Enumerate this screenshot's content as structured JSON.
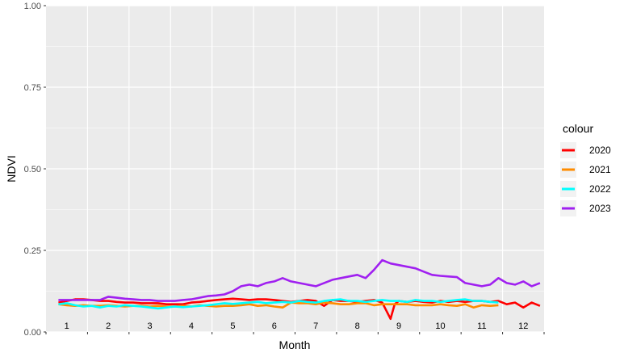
{
  "chart_data": {
    "type": "line",
    "title": "",
    "xlabel": "Month",
    "ylabel": "NDVI",
    "xlim": [
      0.5,
      12.5
    ],
    "ylim": [
      0,
      1
    ],
    "yticks": [
      0.0,
      0.25,
      0.5,
      0.75,
      1.0
    ],
    "ytick_labels": [
      "0.00",
      "0.25",
      "0.50",
      "0.75",
      "1.00"
    ],
    "month_labels": [
      "1",
      "2",
      "3",
      "4",
      "5",
      "6",
      "7",
      "8",
      "9",
      "10",
      "11",
      "12"
    ],
    "legend_title": "colour",
    "legend_position": "right",
    "grid": true,
    "series": [
      {
        "name": "2020",
        "color": "#ff0000",
        "x": [
          0.8,
          1.0,
          1.2,
          1.4,
          1.6,
          1.8,
          2.0,
          2.2,
          2.4,
          2.6,
          2.8,
          3.0,
          3.2,
          3.4,
          3.6,
          3.8,
          4.0,
          4.2,
          4.4,
          4.6,
          4.8,
          5.0,
          5.2,
          5.4,
          5.6,
          5.8,
          6.0,
          6.2,
          6.4,
          6.6,
          6.8,
          7.0,
          7.2,
          7.4,
          7.6,
          7.8,
          8.0,
          8.2,
          8.4,
          8.6,
          8.8,
          8.9,
          9.0,
          9.2,
          9.4,
          9.6,
          9.8,
          10.0,
          10.2,
          10.4,
          10.6,
          10.8,
          11.0,
          11.2,
          11.4,
          11.6,
          11.8,
          12.0,
          12.2,
          12.4
        ],
        "y": [
          0.09,
          0.095,
          0.1,
          0.1,
          0.098,
          0.095,
          0.095,
          0.092,
          0.09,
          0.09,
          0.088,
          0.088,
          0.088,
          0.085,
          0.085,
          0.085,
          0.09,
          0.092,
          0.095,
          0.098,
          0.1,
          0.102,
          0.1,
          0.098,
          0.1,
          0.1,
          0.098,
          0.095,
          0.092,
          0.095,
          0.098,
          0.095,
          0.08,
          0.098,
          0.095,
          0.095,
          0.092,
          0.095,
          0.098,
          0.09,
          0.04,
          0.085,
          0.095,
          0.092,
          0.095,
          0.092,
          0.09,
          0.095,
          0.092,
          0.095,
          0.092,
          0.095,
          0.095,
          0.092,
          0.095,
          0.085,
          0.09,
          0.075,
          0.09,
          0.08
        ]
      },
      {
        "name": "2021",
        "color": "#ff8c00",
        "x": [
          0.8,
          1.0,
          1.2,
          1.4,
          1.6,
          1.8,
          2.0,
          2.2,
          2.4,
          2.6,
          2.8,
          3.0,
          3.2,
          3.4,
          3.6,
          3.8,
          4.0,
          4.2,
          4.4,
          4.6,
          4.8,
          5.0,
          5.2,
          5.4,
          5.6,
          5.8,
          6.0,
          6.2,
          6.4,
          6.6,
          6.8,
          7.0,
          7.2,
          7.4,
          7.6,
          7.8,
          8.0,
          8.2,
          8.4,
          8.6,
          8.8,
          9.0,
          9.2,
          9.4,
          9.6,
          9.8,
          10.0,
          10.2,
          10.4,
          10.6,
          10.8,
          11.0,
          11.2,
          11.4
        ],
        "y": [
          0.085,
          0.082,
          0.08,
          0.082,
          0.08,
          0.08,
          0.082,
          0.08,
          0.078,
          0.08,
          0.08,
          0.078,
          0.08,
          0.078,
          0.078,
          0.08,
          0.078,
          0.082,
          0.08,
          0.078,
          0.08,
          0.08,
          0.082,
          0.085,
          0.08,
          0.082,
          0.078,
          0.075,
          0.09,
          0.088,
          0.088,
          0.085,
          0.09,
          0.088,
          0.085,
          0.085,
          0.088,
          0.088,
          0.082,
          0.085,
          0.085,
          0.085,
          0.085,
          0.082,
          0.082,
          0.082,
          0.085,
          0.082,
          0.08,
          0.085,
          0.075,
          0.082,
          0.08,
          0.082
        ]
      },
      {
        "name": "2022",
        "color": "#00ffff",
        "x": [
          0.8,
          1.0,
          1.2,
          1.4,
          1.6,
          1.8,
          2.0,
          2.2,
          2.4,
          2.6,
          2.8,
          3.0,
          3.2,
          3.4,
          3.6,
          3.8,
          4.0,
          4.2,
          4.4,
          4.6,
          4.8,
          5.0,
          5.2,
          5.4,
          5.6,
          5.8,
          6.0,
          6.2,
          6.4,
          6.6,
          6.8,
          7.0,
          7.2,
          7.4,
          7.6,
          7.8,
          8.0,
          8.2,
          8.4,
          8.6,
          8.8,
          9.0,
          9.2,
          9.4,
          9.6,
          9.8,
          10.0,
          10.2,
          10.4,
          10.6,
          10.8,
          11.0,
          11.2,
          11.4
        ],
        "y": [
          0.085,
          0.088,
          0.082,
          0.078,
          0.08,
          0.075,
          0.08,
          0.078,
          0.082,
          0.08,
          0.078,
          0.075,
          0.072,
          0.075,
          0.078,
          0.076,
          0.078,
          0.08,
          0.082,
          0.085,
          0.088,
          0.086,
          0.088,
          0.09,
          0.092,
          0.088,
          0.09,
          0.092,
          0.09,
          0.095,
          0.092,
          0.09,
          0.095,
          0.098,
          0.1,
          0.095,
          0.095,
          0.092,
          0.095,
          0.098,
          0.095,
          0.095,
          0.092,
          0.098,
          0.095,
          0.095,
          0.092,
          0.095,
          0.098,
          0.1,
          0.095,
          0.095,
          0.092,
          0.09
        ]
      },
      {
        "name": "2023",
        "color": "#a020f0",
        "x": [
          0.8,
          1.0,
          1.2,
          1.4,
          1.6,
          1.8,
          2.0,
          2.2,
          2.4,
          2.6,
          2.8,
          3.0,
          3.2,
          3.4,
          3.6,
          3.8,
          4.0,
          4.2,
          4.4,
          4.6,
          4.8,
          5.0,
          5.2,
          5.4,
          5.6,
          5.8,
          6.0,
          6.2,
          6.4,
          6.6,
          6.8,
          7.0,
          7.2,
          7.4,
          7.6,
          7.8,
          8.0,
          8.2,
          8.4,
          8.6,
          8.8,
          9.0,
          9.2,
          9.4,
          9.6,
          9.8,
          10.0,
          10.2,
          10.4,
          10.6,
          10.8,
          11.0,
          11.2,
          11.4,
          11.6,
          11.8,
          12.0,
          12.2,
          12.4
        ],
        "y": [
          0.098,
          0.098,
          0.098,
          0.098,
          0.098,
          0.098,
          0.108,
          0.105,
          0.102,
          0.1,
          0.098,
          0.098,
          0.095,
          0.095,
          0.095,
          0.098,
          0.1,
          0.105,
          0.11,
          0.112,
          0.115,
          0.125,
          0.14,
          0.145,
          0.14,
          0.15,
          0.155,
          0.165,
          0.155,
          0.15,
          0.145,
          0.14,
          0.15,
          0.16,
          0.165,
          0.17,
          0.175,
          0.165,
          0.19,
          0.22,
          0.21,
          0.205,
          0.2,
          0.195,
          0.185,
          0.175,
          0.172,
          0.17,
          0.168,
          0.15,
          0.145,
          0.14,
          0.145,
          0.165,
          0.15,
          0.145,
          0.155,
          0.14,
          0.15
        ]
      }
    ]
  }
}
